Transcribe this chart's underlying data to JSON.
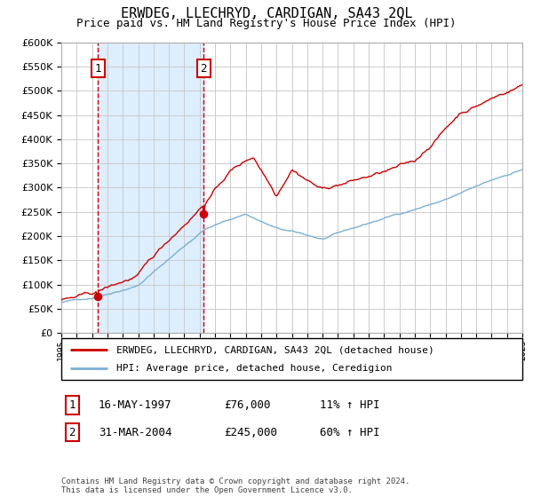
{
  "title": "ERWDEG, LLECHRYD, CARDIGAN, SA43 2QL",
  "subtitle": "Price paid vs. HM Land Registry's House Price Index (HPI)",
  "legend_line1": "ERWDEG, LLECHRYD, CARDIGAN, SA43 2QL (detached house)",
  "legend_line2": "HPI: Average price, detached house, Ceredigion",
  "annotation1_label": "1",
  "annotation1_date": "16-MAY-1997",
  "annotation1_price": "£76,000",
  "annotation1_hpi": "11% ↑ HPI",
  "annotation2_label": "2",
  "annotation2_date": "31-MAR-2004",
  "annotation2_price": "£245,000",
  "annotation2_hpi": "60% ↑ HPI",
  "footnote": "Contains HM Land Registry data © Crown copyright and database right 2024.\nThis data is licensed under the Open Government Licence v3.0.",
  "red_color": "#cc0000",
  "blue_color": "#7bafd4",
  "background_color": "#ffffff",
  "grid_color": "#cccccc",
  "shaded_region_color": "#ddeeff",
  "dashed_line_color": "#cc0000",
  "point1_x_year": 1997.37,
  "point1_y": 76000,
  "point2_x_year": 2004.25,
  "point2_y": 245000,
  "xmin": 1995,
  "xmax": 2025,
  "ymin": 0,
  "ymax": 600000,
  "yticks": [
    0,
    50000,
    100000,
    150000,
    200000,
    250000,
    300000,
    350000,
    400000,
    450000,
    500000,
    550000,
    600000
  ]
}
